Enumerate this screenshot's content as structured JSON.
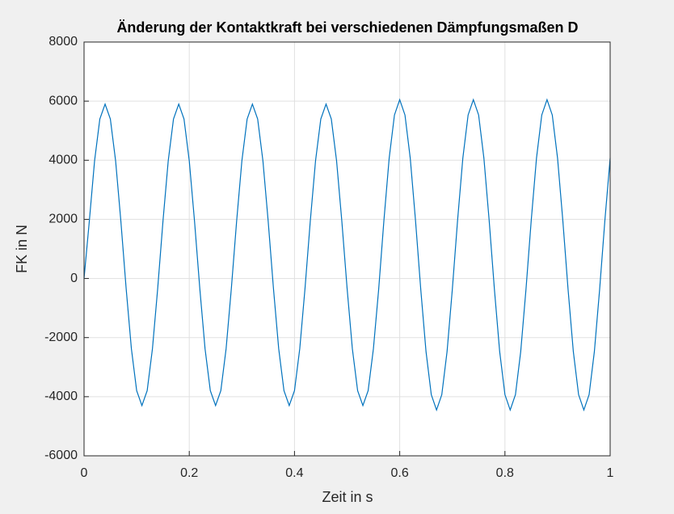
{
  "chart_data": {
    "type": "line",
    "title": "Änderung der Kontaktkraft bei verschiedenen Dämpfungsmaßen D",
    "x_label": "Zeit in s",
    "y_label": "FK in N",
    "x": [
      0,
      0.01,
      0.02,
      0.03,
      0.04,
      0.05,
      0.06,
      0.07,
      0.08,
      0.09,
      0.1,
      0.11,
      0.12,
      0.13,
      0.14,
      0.15,
      0.16,
      0.17,
      0.18,
      0.19,
      0.2,
      0.21,
      0.22,
      0.23,
      0.24,
      0.25,
      0.26,
      0.27,
      0.28,
      0.29,
      0.3,
      0.31,
      0.32,
      0.33,
      0.34,
      0.35,
      0.36,
      0.37,
      0.38,
      0.39,
      0.4,
      0.41,
      0.42,
      0.43,
      0.44,
      0.45,
      0.46,
      0.47,
      0.48,
      0.49,
      0.5,
      0.51,
      0.52,
      0.53,
      0.54,
      0.55,
      0.56,
      0.57,
      0.58,
      0.59,
      0.6,
      0.61,
      0.62,
      0.63,
      0.64,
      0.65,
      0.66,
      0.67,
      0.68,
      0.69,
      0.7,
      0.71,
      0.72,
      0.73,
      0.74,
      0.75,
      0.76,
      0.77,
      0.78,
      0.79,
      0.8,
      0.81,
      0.82,
      0.83,
      0.84,
      0.85,
      0.86,
      0.87,
      0.88,
      0.89,
      0.9,
      0.91,
      0.92,
      0.93,
      0.94,
      0.95,
      0.96,
      0.97,
      0.98,
      0.99,
      1
    ],
    "series": [
      {
        "color": "#0072bd",
        "values": [
          0,
          1935,
          3980,
          5395,
          5900,
          5395,
          3980,
          1935,
          -335,
          -2380,
          -3795,
          -4300,
          -3795,
          -2380,
          -335,
          1935,
          3980,
          5395,
          5900,
          5395,
          3980,
          1935,
          -335,
          -2380,
          -3795,
          -4300,
          -3795,
          -2380,
          -335,
          1935,
          3980,
          5395,
          5900,
          5395,
          3980,
          1935,
          -335,
          -2380,
          -3795,
          -4300,
          -3795,
          -2380,
          -335,
          1935,
          3980,
          5395,
          5900,
          5395,
          3980,
          1935,
          -335,
          -2380,
          -3795,
          -4300,
          -3795,
          -2380,
          -368,
          1968,
          4073,
          5530,
          6050,
          5530,
          4073,
          1968,
          -368,
          -2473,
          -3930,
          -4450,
          -3930,
          -2473,
          -368,
          1968,
          4073,
          5530,
          6050,
          5530,
          4073,
          1968,
          -368,
          -2473,
          -3930,
          -4450,
          -3930,
          -2473,
          -368,
          1968,
          4073,
          5530,
          6050,
          5530,
          4073,
          1968,
          -368,
          -2473,
          -3930,
          -4450,
          -3930,
          -2473,
          -368,
          1968,
          4073
        ]
      }
    ],
    "xlim": [
      0,
      1
    ],
    "xticks": [
      0,
      0.2,
      0.4,
      0.6,
      0.8,
      1
    ],
    "ylim": [
      -6000,
      8000
    ],
    "yticks": [
      -6000,
      -4000,
      -2000,
      0,
      2000,
      4000,
      6000,
      8000
    ],
    "grid": true
  }
}
